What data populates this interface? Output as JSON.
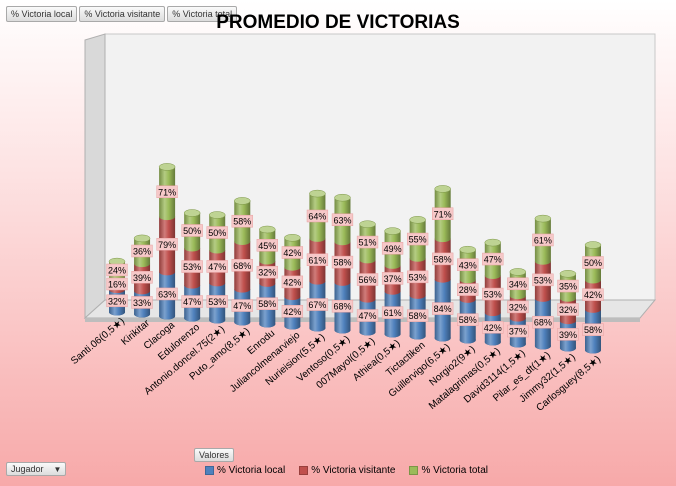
{
  "field_buttons": [
    "% Victoria local",
    "% Victoria visitante",
    "% Victoria total"
  ],
  "valores_label": "Valores",
  "filter": {
    "label": "Jugador",
    "arrow_icon": "dropdown-arrow-icon"
  },
  "colors": {
    "local": "#4f81bd",
    "visitante": "#c0504d",
    "total": "#9bbb59"
  },
  "chart_data": {
    "type": "bar",
    "stacked": true,
    "three_d": true,
    "title": "PROMEDIO DE VICTORIAS",
    "legend_position": "bottom",
    "categories": [
      "Santi.06(0,5★)",
      "Kirikitar",
      "Clacoga",
      "Edulorenzo",
      "Antonio.doncel.75(2★)",
      "Puto_amo(8,5★)",
      "Enrodu",
      "Juliancolmenarviejo",
      "Nurieision(5,5★)",
      "Ventoso(0,5★)",
      "007Mayol(0,5★)",
      "Athiea(0,5★)",
      "Tictactiken",
      "Guillervigo(6,5★)",
      "Norgio2(9★)",
      "Matalagrimas(0,5★)",
      "David3114(1,5★)",
      "Pilar_es_dt(1★)",
      "Jimmy32(1,5★)",
      "Carlosguey(8,5★)"
    ],
    "series": [
      {
        "name": "% Victoria local",
        "values": [
          32,
          33,
          63,
          47,
          53,
          47,
          58,
          42,
          67,
          68,
          47,
          61,
          58,
          84,
          58,
          42,
          37,
          68,
          39,
          58
        ]
      },
      {
        "name": "% Victoria visitante",
        "values": [
          16,
          39,
          79,
          53,
          47,
          68,
          32,
          42,
          61,
          58,
          56,
          37,
          53,
          58,
          28,
          53,
          32,
          53,
          32,
          42
        ]
      },
      {
        "name": "% Victoria total",
        "values": [
          24,
          36,
          71,
          50,
          50,
          58,
          45,
          42,
          64,
          63,
          51,
          49,
          55,
          71,
          43,
          47,
          34,
          61,
          35,
          50
        ]
      }
    ],
    "value_labels": "percent"
  }
}
